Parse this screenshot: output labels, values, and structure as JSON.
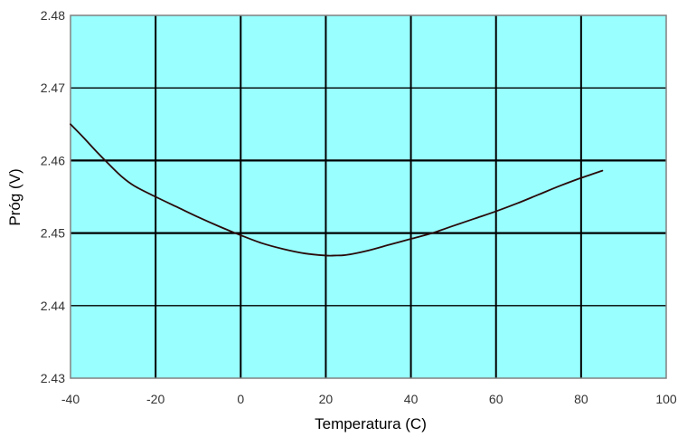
{
  "chart_data": {
    "type": "line",
    "title": "",
    "xlabel": "Temperatura (C)",
    "ylabel": "Próg (V)",
    "xlim": [
      -40,
      100
    ],
    "ylim": [
      2.43,
      2.48
    ],
    "x_ticks": [
      -40,
      -20,
      0,
      20,
      40,
      60,
      80,
      100
    ],
    "y_ticks": [
      2.43,
      2.44,
      2.45,
      2.46,
      2.47,
      2.48
    ],
    "x_tick_labels": [
      "-40",
      "-20",
      "0",
      "20",
      "40",
      "60",
      "80",
      "100"
    ],
    "y_tick_labels": [
      "2.43",
      "2.44",
      "2.45",
      "2.46",
      "2.47",
      "2.48"
    ],
    "grid": true,
    "legend": "none",
    "colors": {
      "plot_background": "#99ffff",
      "line": "#2a0a0a",
      "grid": "#000000",
      "frame": "#808080"
    },
    "series": [
      {
        "x": [
          -40,
          -37,
          -34,
          -31,
          -28,
          -25,
          -20,
          -15,
          -10,
          -5,
          0,
          5,
          10,
          15,
          20,
          22,
          25,
          30,
          35,
          40,
          45,
          50,
          55,
          60,
          65,
          70,
          75,
          80,
          85
        ],
        "values": [
          2.465,
          2.4632,
          2.4613,
          2.4595,
          2.4578,
          2.4565,
          2.455,
          2.4536,
          2.4522,
          2.4509,
          2.4497,
          2.4486,
          2.4478,
          2.4472,
          2.4469,
          2.4469,
          2.447,
          2.4476,
          2.4484,
          2.4492,
          2.45,
          2.451,
          2.452,
          2.453,
          2.4541,
          2.4553,
          2.4565,
          2.4576,
          2.4586
        ]
      }
    ]
  }
}
